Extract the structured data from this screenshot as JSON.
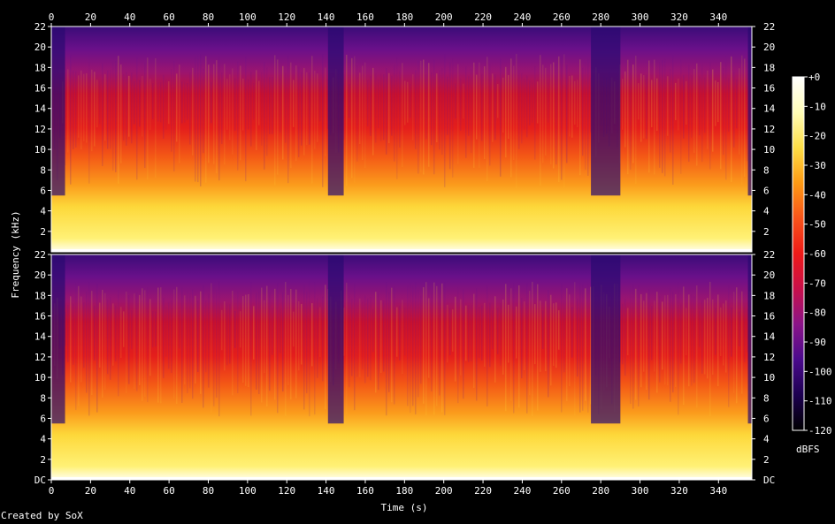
{
  "chart_data": {
    "type": "heatmap",
    "title": "",
    "xlabel": "Time (s)",
    "ylabel": "Frequency (kHz)",
    "xlim": [
      0,
      357
    ],
    "ylim_khz": [
      0,
      22.05
    ],
    "x_ticks": [
      "0",
      "20",
      "40",
      "60",
      "80",
      "100",
      "120",
      "140",
      "160",
      "180",
      "200",
      "220",
      "240",
      "260",
      "280",
      "300",
      "320",
      "340"
    ],
    "y_ticks": [
      "DC",
      "2",
      "4",
      "6",
      "8",
      "10",
      "12",
      "14",
      "16",
      "18",
      "20",
      "22"
    ],
    "channels": [
      "channel-1",
      "channel-2"
    ],
    "colorbar": {
      "label": "dBFS",
      "range": [
        -120,
        0
      ],
      "ticks": [
        "+0",
        "-10",
        "-20",
        "-30",
        "-40",
        "-50",
        "-60",
        "-70",
        "-80",
        "-90",
        "-100",
        "-110",
        "-120"
      ],
      "colors": [
        "#000000",
        "#1c0050",
        "#4a0a8c",
        "#8a1488",
        "#c8104a",
        "#ee1a18",
        "#f8541a",
        "#fd9a14",
        "#fede46",
        "#fffdb8",
        "#ffffff"
      ]
    },
    "quiet_segments_s": [
      [
        0,
        7
      ],
      [
        141,
        149
      ],
      [
        275,
        290
      ],
      [
        355,
        357
      ]
    ]
  },
  "footer": {
    "credit": "Created by SoX"
  }
}
